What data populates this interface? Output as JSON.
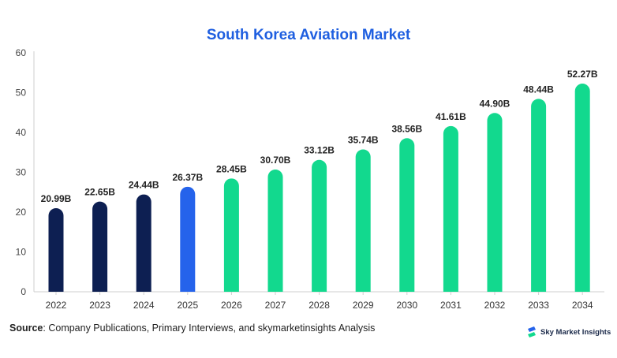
{
  "chart_data": {
    "type": "bar",
    "title": "South Korea Aviation Market",
    "categories": [
      "2022",
      "2023",
      "2024",
      "2025",
      "2026",
      "2027",
      "2028",
      "2029",
      "2030",
      "2031",
      "2032",
      "2033",
      "2034"
    ],
    "values": [
      20.99,
      22.65,
      24.44,
      26.37,
      28.45,
      30.7,
      33.12,
      35.74,
      38.56,
      41.61,
      44.9,
      48.44,
      52.27
    ],
    "data_labels": [
      "20.99B",
      "22.65B",
      "24.44B",
      "26.37B",
      "28.45B",
      "30.70B",
      "33.12B",
      "35.74B",
      "38.56B",
      "41.61B",
      "44.90B",
      "48.44B",
      "52.27B"
    ],
    "ylim": [
      0,
      60
    ],
    "yticks": [
      0,
      10,
      20,
      30,
      40,
      50,
      60
    ],
    "xlabel": "",
    "ylabel": "",
    "grid": false,
    "bar_colors": [
      "#0d1f52",
      "#0d1f52",
      "#0d1f52",
      "#2563eb",
      "#12d98e",
      "#12d98e",
      "#12d98e",
      "#12d98e",
      "#12d98e",
      "#12d98e",
      "#12d98e",
      "#12d98e",
      "#12d98e"
    ]
  },
  "source": {
    "label": "Source",
    "text": ": Company Publications, Primary Interviews, and skymarketinsights Analysis"
  },
  "brand": {
    "name": "Sky Market Insights",
    "icon": "sky-market-insights-logo-icon",
    "color": "#2563eb"
  }
}
